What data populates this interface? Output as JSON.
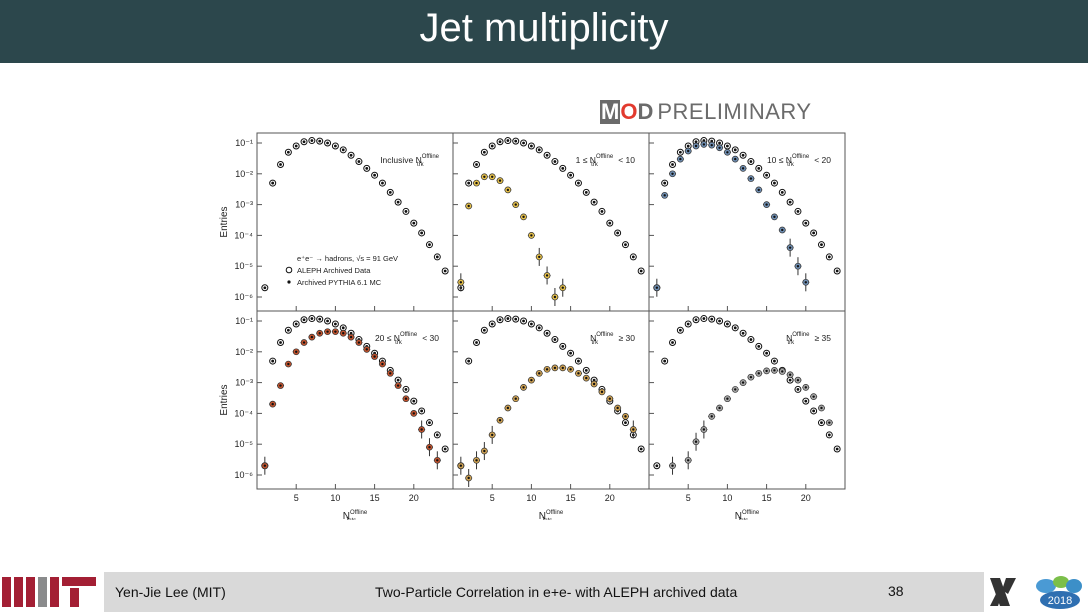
{
  "slide": {
    "title": "Jet multiplicity",
    "badge": {
      "m": "M",
      "o": "O",
      "d": "D",
      "text": "PRELIMINARY"
    },
    "footer": {
      "author": "Yen-Jie Lee (MIT)",
      "center": "Two-Particle Correlation in e+e- with ALEPH archived data",
      "page": "38"
    },
    "logo_year": "2018"
  },
  "chart_data": {
    "type": "scatter",
    "layout": "2x3 grid",
    "y_scale": "log",
    "ylim": [
      1e-06,
      0.1
    ],
    "xlim": [
      0,
      25
    ],
    "x_ticks": [
      5,
      10,
      15,
      20
    ],
    "y_tick_labels": [
      "10⁻¹",
      "10⁻²",
      "10⁻³",
      "10⁻⁴",
      "10⁻⁵",
      "10⁻⁶"
    ],
    "ylabel": "Entries",
    "xlabel": "N",
    "xlabel_sub": "Jets",
    "xlabel_sup": "Offline",
    "legend_panel_0": [
      "e⁺e⁻ → hadrons, √s = 91 GeV",
      "ALEPH Archived Data",
      "Archived PYTHIA 6.1 MC"
    ],
    "panels": [
      {
        "label": "Inclusive N",
        "label_sub": "trk",
        "label_sup": "Offline",
        "label_post": "",
        "color": null
      },
      {
        "label": "1 ≤ N",
        "label_sub": "trk",
        "label_sup": "Offline",
        "label_post": "< 10",
        "color": "#e8c24a"
      },
      {
        "label": "10 ≤ N",
        "label_sub": "trk",
        "label_sup": "Offline",
        "label_post": "< 20",
        "color": "#6f8fb4"
      },
      {
        "label": "20 ≤ N",
        "label_sub": "trk",
        "label_sup": "Offline",
        "label_post": "< 30",
        "color": "#c4532d"
      },
      {
        "label": "N",
        "label_sub": "trk",
        "label_sup": "Offline",
        "label_post": "≥ 30",
        "color": "#d2a453"
      },
      {
        "label": "N",
        "label_sub": "trk",
        "label_sup": "Offline",
        "label_post": "≥ 35",
        "color": "#a9a9a9"
      }
    ],
    "series": [
      {
        "name": "ALEPH Archived Data",
        "style": "open circle",
        "x": [
          1,
          2,
          3,
          4,
          5,
          6,
          7,
          8,
          9,
          10,
          11,
          12,
          13,
          14,
          15,
          16,
          17,
          18,
          19,
          20,
          21,
          22,
          23,
          24
        ],
        "values": [
          2e-06,
          0.005,
          0.02,
          0.05,
          0.08,
          0.11,
          0.12,
          0.115,
          0.1,
          0.08,
          0.06,
          0.04,
          0.025,
          0.015,
          0.009,
          0.005,
          0.0025,
          0.0012,
          0.0006,
          0.00025,
          0.00012,
          5e-05,
          2e-05,
          7e-06
        ]
      },
      {
        "name": "Archived PYTHIA 6.1 MC",
        "style": "filled dot",
        "x": [
          1,
          2,
          3,
          4,
          5,
          6,
          7,
          8,
          9,
          10,
          11,
          12,
          13,
          14,
          15,
          16,
          17,
          18,
          19,
          20,
          21,
          22,
          23,
          24
        ],
        "values": [
          2e-06,
          0.005,
          0.02,
          0.05,
          0.08,
          0.11,
          0.12,
          0.115,
          0.1,
          0.08,
          0.06,
          0.04,
          0.025,
          0.015,
          0.009,
          0.005,
          0.0025,
          0.0012,
          0.0006,
          0.00025,
          0.00012,
          5e-05,
          2e-05,
          7e-06
        ]
      },
      {
        "name": "1 ≤ N < 10",
        "x": [
          1,
          2,
          3,
          4,
          5,
          6,
          7,
          8,
          9,
          10,
          11,
          12,
          13,
          14
        ],
        "values": [
          3e-06,
          0.0009,
          0.005,
          0.008,
          0.008,
          0.006,
          0.003,
          0.001,
          0.0004,
          0.0001,
          2e-05,
          5e-06,
          1e-06,
          2e-06
        ]
      },
      {
        "name": "10 ≤ N < 20",
        "x": [
          1,
          2,
          3,
          4,
          5,
          6,
          7,
          8,
          9,
          10,
          11,
          12,
          13,
          14,
          15,
          16,
          17,
          18,
          19,
          20
        ],
        "values": [
          2e-06,
          0.002,
          0.01,
          0.03,
          0.055,
          0.08,
          0.09,
          0.085,
          0.07,
          0.05,
          0.03,
          0.015,
          0.007,
          0.003,
          0.001,
          0.0004,
          0.00015,
          4e-05,
          1e-05,
          3e-06
        ]
      },
      {
        "name": "20 ≤ N < 30",
        "x": [
          1,
          2,
          3,
          4,
          5,
          6,
          7,
          8,
          9,
          10,
          11,
          12,
          13,
          14,
          15,
          16,
          17,
          18,
          19,
          20,
          21,
          22,
          23
        ],
        "values": [
          2e-06,
          0.0002,
          0.0008,
          0.004,
          0.01,
          0.02,
          0.03,
          0.04,
          0.045,
          0.045,
          0.04,
          0.03,
          0.02,
          0.012,
          0.007,
          0.004,
          0.002,
          0.0008,
          0.0003,
          0.0001,
          3e-05,
          8e-06,
          3e-06
        ]
      },
      {
        "name": "N ≥ 30",
        "x": [
          1,
          2,
          3,
          4,
          5,
          6,
          7,
          8,
          9,
          10,
          11,
          12,
          13,
          14,
          15,
          16,
          17,
          18,
          19,
          20,
          21,
          22,
          23
        ],
        "values": [
          2e-06,
          8e-07,
          3e-06,
          6e-06,
          2e-05,
          6e-05,
          0.00015,
          0.0003,
          0.0007,
          0.0012,
          0.002,
          0.0027,
          0.003,
          0.003,
          0.0027,
          0.002,
          0.0014,
          0.0009,
          0.0005,
          0.0003,
          0.00015,
          8e-05,
          3e-05
        ]
      },
      {
        "name": "N ≥ 35",
        "x": [
          3,
          5,
          6,
          7,
          8,
          9,
          10,
          11,
          12,
          13,
          14,
          15,
          16,
          17,
          18,
          19,
          20,
          21,
          22,
          23
        ],
        "values": [
          2e-06,
          3e-06,
          1.2e-05,
          3e-05,
          8e-05,
          0.00015,
          0.0003,
          0.0006,
          0.001,
          0.0015,
          0.002,
          0.0024,
          0.0025,
          0.0023,
          0.0018,
          0.0012,
          0.0007,
          0.00035,
          0.00015,
          5e-05
        ]
      }
    ]
  }
}
